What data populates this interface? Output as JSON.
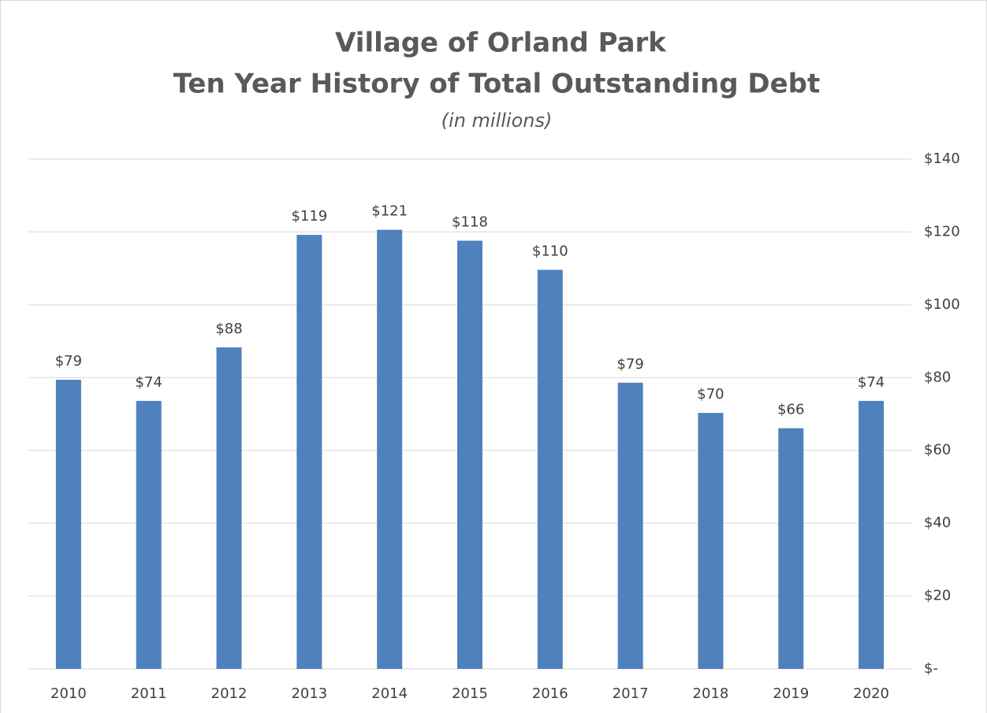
{
  "chart_data": {
    "type": "bar",
    "title": [
      "Village of Orland Park",
      "Ten Year History of Total Outstanding Debt"
    ],
    "subtitle": "(in millions)",
    "categories": [
      "2010",
      "2011",
      "2012",
      "2013",
      "2014",
      "2015",
      "2016",
      "2017",
      "2018",
      "2019",
      "2020"
    ],
    "values": [
      79.4,
      73.6,
      88.3,
      119.2,
      120.6,
      117.6,
      109.6,
      78.6,
      70.3,
      66.1,
      73.6
    ],
    "value_labels": [
      "$79",
      "$74",
      "$88",
      "$119",
      "$121",
      "$118",
      "$110",
      "$79",
      "$70",
      "$66",
      "$74"
    ],
    "color": "#4f81bd",
    "ylim": [
      0,
      140
    ],
    "yticks": [
      {
        "value": 0,
        "label": "$-"
      },
      {
        "value": 20,
        "label": "$20"
      },
      {
        "value": 40,
        "label": "$40"
      },
      {
        "value": 60,
        "label": "$60"
      },
      {
        "value": 80,
        "label": "$80"
      },
      {
        "value": 100,
        "label": "$100"
      },
      {
        "value": 120,
        "label": "$120"
      },
      {
        "value": 140,
        "label": "$140"
      }
    ],
    "grid": true
  }
}
